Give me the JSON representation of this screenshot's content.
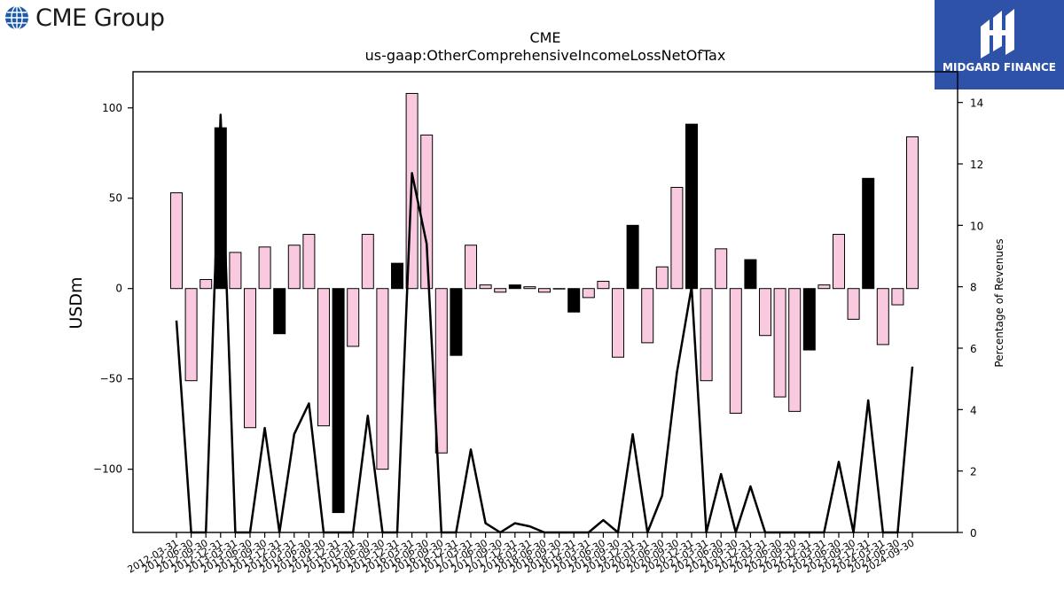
{
  "brand": {
    "left_logo_text": "CME Group",
    "right_logo_text": "MIDGARD FINANCE",
    "right_logo_color": "#2d52a8"
  },
  "chart_data": {
    "type": "bar",
    "title": "CME",
    "subtitle": "us-gaap:OtherComprehensiveIncomeLossNetOfTax",
    "ylabel": "USDm",
    "y2label": "Percentage of Revenues",
    "ylim": [
      -135,
      120
    ],
    "y2lim": [
      0,
      15
    ],
    "yticks": [
      100,
      50,
      0,
      -50,
      -100
    ],
    "y2ticks": [
      0,
      2,
      4,
      6,
      8,
      10,
      12,
      14
    ],
    "colors": {
      "positive_fill": "#f9c9e0",
      "negative_fill": "#000000",
      "bar_edge": "#000000",
      "line": "#000000"
    },
    "categories": [
      "2012-03-31",
      "2012-06-30",
      "2012-09-30",
      "2012-12-31",
      "2013-03-31",
      "2013-06-30",
      "2013-09-30",
      "2013-12-31",
      "2014-03-31",
      "2014-06-30",
      "2014-09-30",
      "2014-12-31",
      "2015-03-31",
      "2015-06-30",
      "2015-09-30",
      "2015-12-31",
      "2016-03-31",
      "2016-06-30",
      "2016-09-30",
      "2016-12-31",
      "2017-03-31",
      "2017-06-30",
      "2017-09-30",
      "2017-12-31",
      "2018-03-31",
      "2018-06-30",
      "2018-09-30",
      "2018-12-31",
      "2019-03-31",
      "2019-06-30",
      "2019-09-30",
      "2019-12-31",
      "2020-03-31",
      "2020-06-30",
      "2020-09-30",
      "2020-12-31",
      "2021-03-31",
      "2021-06-30",
      "2021-09-30",
      "2021-12-31",
      "2022-03-31",
      "2022-06-30",
      "2022-09-30",
      "2022-12-31",
      "2023-03-31",
      "2023-06-30",
      "2023-09-30",
      "2023-12-31",
      "2024-03-31",
      "2024-06-30",
      "2024-09-30"
    ],
    "series": [
      {
        "type": "bar",
        "values": [
          53,
          -51,
          5,
          89,
          20,
          -77,
          23,
          -25,
          24,
          30,
          -76,
          -124,
          -32,
          30,
          -100,
          14,
          108,
          85,
          -91,
          -37,
          24,
          2,
          -2,
          2,
          1,
          -2,
          0,
          -13,
          -5,
          4,
          -38,
          35,
          -30,
          12,
          56,
          91,
          -51,
          22,
          -69,
          16,
          -26,
          -60,
          -68,
          -34,
          2,
          30,
          -17,
          61,
          -31,
          -9,
          84
        ],
        "color_flags": [
          "pos",
          "pos",
          "pos",
          "neg",
          "pos",
          "pos",
          "pos",
          "neg",
          "pos",
          "pos",
          "pos",
          "neg",
          "pos",
          "pos",
          "pos",
          "neg",
          "pos",
          "pos",
          "pos",
          "neg",
          "pos",
          "pos",
          "pos",
          "neg",
          "pos",
          "pos",
          "pos",
          "neg",
          "pos",
          "pos",
          "pos",
          "neg",
          "pos",
          "pos",
          "pos",
          "neg",
          "pos",
          "pos",
          "pos",
          "neg",
          "pos",
          "pos",
          "pos",
          "neg",
          "pos",
          "pos",
          "pos",
          "neg",
          "pos",
          "pos",
          "pos"
        ]
      },
      {
        "type": "line",
        "axis": "right",
        "values": [
          6.9,
          0,
          0,
          13.6,
          0,
          0,
          3.4,
          0,
          3.2,
          4.2,
          0,
          0,
          0,
          3.8,
          0,
          0,
          11.7,
          9.4,
          0,
          0,
          2.7,
          0.3,
          0,
          0.3,
          0.2,
          0,
          0,
          0,
          0,
          0.4,
          0,
          3.2,
          0,
          1.2,
          5.2,
          8.0,
          0,
          1.9,
          0,
          1.5,
          0,
          0,
          0,
          0,
          0,
          2.3,
          0,
          4.3,
          0,
          0,
          5.4
        ]
      }
    ]
  }
}
